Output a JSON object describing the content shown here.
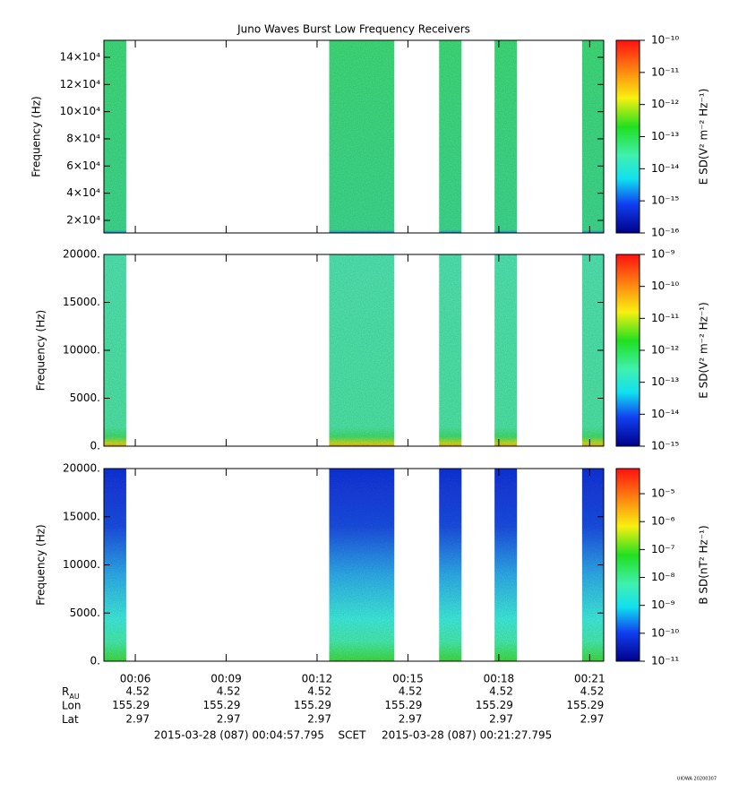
{
  "chart_data": [
    {
      "type": "spectrogram",
      "title": "Juno Waves Burst Low Frequency Receivers",
      "ylabel": "Frequency (Hz)",
      "xlim": [
        4.963,
        21.463
      ],
      "xticks": [
        {
          "value": 6,
          "label": "00:06"
        },
        {
          "value": 9,
          "label": "00:09"
        },
        {
          "value": 12,
          "label": "00:12"
        },
        {
          "value": 15,
          "label": "00:15"
        },
        {
          "value": 18,
          "label": "00:18"
        },
        {
          "value": 21,
          "label": "00:21"
        }
      ],
      "ylim": [
        10770,
        152500
      ],
      "yticks": [
        {
          "value": 20000,
          "label": "2×10⁴"
        },
        {
          "value": 40000,
          "label": "4×10⁴"
        },
        {
          "value": 60000,
          "label": "6×10⁴"
        },
        {
          "value": 80000,
          "label": "8×10⁴"
        },
        {
          "value": 100000,
          "label": "10×10⁴"
        },
        {
          "value": 120000,
          "label": "12×10⁴"
        },
        {
          "value": 140000,
          "label": "14×10⁴"
        }
      ],
      "zlabel": "E SD(V² m⁻² Hz⁻¹)",
      "zlim": [
        -16,
        -10
      ],
      "zticks": [
        {
          "value": -10,
          "label": "10⁻¹⁰"
        },
        {
          "value": -11,
          "label": "10⁻¹¹"
        },
        {
          "value": -12,
          "label": "10⁻¹²"
        },
        {
          "value": -13,
          "label": "10⁻¹³"
        },
        {
          "value": -14,
          "label": "10⁻¹⁴"
        },
        {
          "value": -15,
          "label": "10⁻¹⁵"
        },
        {
          "value": -16,
          "label": "10⁻¹⁶"
        }
      ],
      "segments": [
        [
          4.963,
          5.7
        ],
        [
          12.4,
          14.55
        ],
        [
          16.03,
          16.77
        ],
        [
          17.86,
          18.6
        ],
        [
          20.75,
          21.463
        ]
      ]
    },
    {
      "type": "spectrogram",
      "ylabel": "Frequency (Hz)",
      "xlim": [
        4.963,
        21.463
      ],
      "xticks": [
        {
          "value": 6,
          "label": "00:06"
        },
        {
          "value": 9,
          "label": "00:09"
        },
        {
          "value": 12,
          "label": "00:12"
        },
        {
          "value": 15,
          "label": "00:15"
        },
        {
          "value": 18,
          "label": "00:18"
        },
        {
          "value": 21,
          "label": "00:21"
        }
      ],
      "ylim": [
        0,
        20000
      ],
      "yticks": [
        {
          "value": 0,
          "label": "0."
        },
        {
          "value": 5000,
          "label": "5000."
        },
        {
          "value": 10000,
          "label": "10000."
        },
        {
          "value": 15000,
          "label": "15000."
        },
        {
          "value": 20000,
          "label": "20000."
        }
      ],
      "zlabel": "E SD(V² m⁻² Hz⁻¹)",
      "zlim": [
        -15,
        -9
      ],
      "zticks": [
        {
          "value": -9,
          "label": "10⁻⁹"
        },
        {
          "value": -10,
          "label": "10⁻¹⁰"
        },
        {
          "value": -11,
          "label": "10⁻¹¹"
        },
        {
          "value": -12,
          "label": "10⁻¹²"
        },
        {
          "value": -13,
          "label": "10⁻¹³"
        },
        {
          "value": -14,
          "label": "10⁻¹⁴"
        },
        {
          "value": -15,
          "label": "10⁻¹⁵"
        }
      ],
      "segments": [
        [
          4.963,
          5.7
        ],
        [
          12.4,
          14.55
        ],
        [
          16.03,
          16.77
        ],
        [
          17.86,
          18.6
        ],
        [
          20.75,
          21.463
        ]
      ]
    },
    {
      "type": "spectrogram",
      "ylabel": "Frequency (Hz)",
      "xlim": [
        4.963,
        21.463
      ],
      "xticks": [
        {
          "value": 6,
          "label": "00:06"
        },
        {
          "value": 9,
          "label": "00:09"
        },
        {
          "value": 12,
          "label": "00:12"
        },
        {
          "value": 15,
          "label": "00:15"
        },
        {
          "value": 18,
          "label": "00:18"
        },
        {
          "value": 21,
          "label": "00:21"
        }
      ],
      "ylim": [
        0,
        20000
      ],
      "yticks": [
        {
          "value": 0,
          "label": "0."
        },
        {
          "value": 5000,
          "label": "5000."
        },
        {
          "value": 10000,
          "label": "10000."
        },
        {
          "value": 15000,
          "label": "15000."
        },
        {
          "value": 20000,
          "label": "20000."
        }
      ],
      "zlabel": "B SD(nT² Hz⁻¹)",
      "zlim": [
        -11,
        -4.1
      ],
      "zticks": [
        {
          "value": -5,
          "label": "10⁻⁵"
        },
        {
          "value": -6,
          "label": "10⁻⁶"
        },
        {
          "value": -7,
          "label": "10⁻⁷"
        },
        {
          "value": -8,
          "label": "10⁻⁸"
        },
        {
          "value": -9,
          "label": "10⁻⁹"
        },
        {
          "value": -10,
          "label": "10⁻¹⁰"
        },
        {
          "value": -11,
          "label": "10⁻¹¹"
        }
      ],
      "segments": [
        [
          4.963,
          5.7
        ],
        [
          12.4,
          14.55
        ],
        [
          16.03,
          16.77
        ],
        [
          17.86,
          18.6
        ],
        [
          20.75,
          21.463
        ]
      ]
    }
  ],
  "ephemeris": [
    {
      "label": "R",
      "sub": "AU",
      "values": [
        4.52,
        4.52,
        4.52,
        4.52,
        4.52,
        4.52
      ]
    },
    {
      "label": "Lon",
      "values": [
        155.29,
        155.29,
        155.29,
        155.29,
        155.29,
        155.29
      ]
    },
    {
      "label": "Lat",
      "values": [
        2.97,
        2.97,
        2.97,
        2.97,
        2.97,
        2.97
      ]
    }
  ],
  "footer": {
    "start": "2015-03-28 (087) 00:04:57.795",
    "frame": "SCET",
    "end": "2015-03-28 (087) 00:21:27.795"
  },
  "stamp": "UIOWA 20200307"
}
